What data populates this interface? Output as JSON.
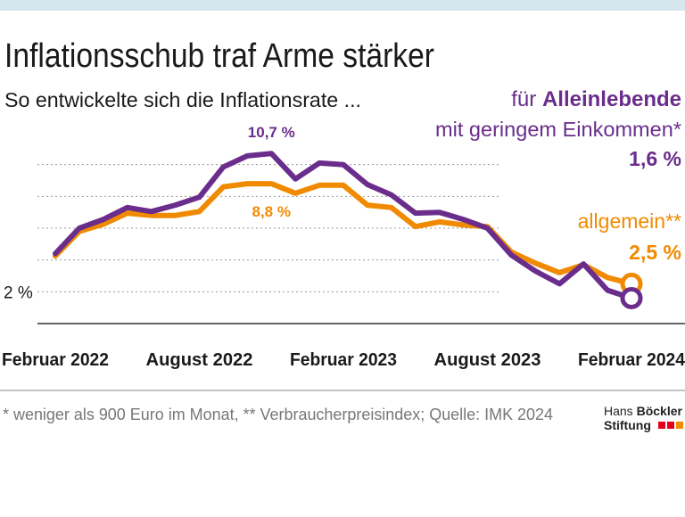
{
  "chart_data": {
    "type": "line",
    "title": "Inflationsschub traf Arme stärker",
    "subtitle": "So entwickelte sich die Inflationsrate ...",
    "categories": [
      "Februar 2022",
      null,
      null,
      null,
      null,
      null,
      "August 2022",
      null,
      null,
      null,
      null,
      null,
      "Februar 2023",
      null,
      null,
      null,
      null,
      null,
      "August 2023",
      null,
      null,
      null,
      null,
      null,
      "Februar 2024"
    ],
    "series": [
      {
        "name_prefix": "für ",
        "name": "Alleinlebende",
        "name_suffix": "mit  geringem Einkommen*",
        "color": "#6a2d8c",
        "values": [
          4.4,
          6.0,
          6.55,
          7.3,
          7.05,
          7.45,
          7.95,
          9.85,
          10.55,
          10.7,
          9.1,
          10.1,
          10.0,
          8.75,
          8.1,
          6.95,
          7.0,
          6.55,
          6.0,
          4.3,
          3.3,
          2.5,
          3.75,
          2.1,
          1.6
        ],
        "value_labels": [
          null,
          null,
          null,
          null,
          null,
          null,
          null,
          null,
          null,
          "10,7 %",
          null,
          null,
          null,
          null,
          null,
          null,
          null,
          null,
          null,
          null,
          null,
          null,
          null,
          null,
          "1,6 %"
        ]
      },
      {
        "name": "allgemein**",
        "color": "#f08a00",
        "values": [
          4.25,
          5.8,
          6.25,
          6.95,
          6.8,
          6.8,
          7.05,
          8.6,
          8.8,
          8.8,
          8.2,
          8.7,
          8.7,
          7.45,
          7.3,
          6.1,
          6.4,
          6.2,
          6.1,
          4.5,
          3.8,
          3.2,
          3.7,
          2.9,
          2.5
        ],
        "value_labels": [
          null,
          null,
          null,
          null,
          null,
          null,
          null,
          null,
          null,
          "8,8 %",
          null,
          null,
          null,
          null,
          null,
          null,
          null,
          null,
          null,
          null,
          null,
          null,
          null,
          null,
          "2,5 %"
        ]
      }
    ],
    "ylim": [
      0,
      12
    ],
    "yticks": [
      {
        "value": 2,
        "label": "2 %"
      }
    ],
    "gridlines": [
      4,
      6,
      8,
      10
    ],
    "footnote": "* weniger als 900 Euro im Monat, ** Verbraucherpreisindex; Quelle: IMK 2024",
    "logo": [
      "Hans",
      "Böckler",
      "Stiftung"
    ]
  }
}
